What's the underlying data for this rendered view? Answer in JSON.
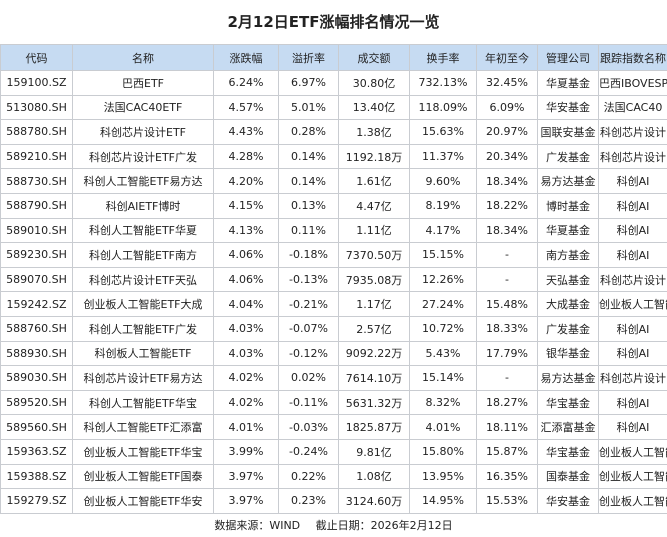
{
  "header": {
    "title": "2月12日ETF涨幅排名情况一览"
  },
  "table": {
    "columns": [
      "代码",
      "名称",
      "涨跌幅",
      "溢折率",
      "成交额",
      "换手率",
      "年初至今",
      "管理公司",
      "跟踪指数名称"
    ],
    "rows": [
      [
        "159100.SZ",
        "巴西ETF",
        "6.24%",
        "6.97%",
        "30.80亿",
        "732.13%",
        "32.45%",
        "华夏基金",
        "巴西IBOVESPA指数"
      ],
      [
        "513080.SH",
        "法国CAC40ETF",
        "4.57%",
        "5.01%",
        "13.40亿",
        "118.09%",
        "6.09%",
        "华安基金",
        "法国CAC40"
      ],
      [
        "588780.SH",
        "科创芯片设计ETF",
        "4.43%",
        "0.28%",
        "1.38亿",
        "15.63%",
        "20.97%",
        "国联安基金",
        "科创芯片设计"
      ],
      [
        "589210.SH",
        "科创芯片设计ETF广发",
        "4.28%",
        "0.14%",
        "1192.18万",
        "11.37%",
        "20.34%",
        "广发基金",
        "科创芯片设计"
      ],
      [
        "588730.SH",
        "科创人工智能ETF易方达",
        "4.20%",
        "0.14%",
        "1.61亿",
        "9.60%",
        "18.34%",
        "易方达基金",
        "科创AI"
      ],
      [
        "588790.SH",
        "科创AIETF博时",
        "4.15%",
        "0.13%",
        "4.47亿",
        "8.19%",
        "18.22%",
        "博时基金",
        "科创AI"
      ],
      [
        "589010.SH",
        "科创人工智能ETF华夏",
        "4.13%",
        "0.11%",
        "1.11亿",
        "4.17%",
        "18.34%",
        "华夏基金",
        "科创AI"
      ],
      [
        "589230.SH",
        "科创人工智能ETF南方",
        "4.06%",
        "-0.18%",
        "7370.50万",
        "15.15%",
        "-",
        "南方基金",
        "科创AI"
      ],
      [
        "589070.SH",
        "科创芯片设计ETF天弘",
        "4.06%",
        "-0.13%",
        "7935.08万",
        "12.26%",
        "-",
        "天弘基金",
        "科创芯片设计"
      ],
      [
        "159242.SZ",
        "创业板人工智能ETF大成",
        "4.04%",
        "-0.21%",
        "1.17亿",
        "27.24%",
        "15.48%",
        "大成基金",
        "创业板人工智能"
      ],
      [
        "588760.SH",
        "科创人工智能ETF广发",
        "4.03%",
        "-0.07%",
        "2.57亿",
        "10.72%",
        "18.33%",
        "广发基金",
        "科创AI"
      ],
      [
        "588930.SH",
        "科创板人工智能ETF",
        "4.03%",
        "-0.12%",
        "9092.22万",
        "5.43%",
        "17.79%",
        "银华基金",
        "科创AI"
      ],
      [
        "589030.SH",
        "科创芯片设计ETF易方达",
        "4.02%",
        "0.02%",
        "7614.10万",
        "15.14%",
        "-",
        "易方达基金",
        "科创芯片设计"
      ],
      [
        "589520.SH",
        "科创人工智能ETF华宝",
        "4.02%",
        "-0.11%",
        "5631.32万",
        "8.32%",
        "18.27%",
        "华宝基金",
        "科创AI"
      ],
      [
        "589560.SH",
        "科创人工智能ETF汇添富",
        "4.01%",
        "-0.03%",
        "1825.87万",
        "4.01%",
        "18.11%",
        "汇添富基金",
        "科创AI"
      ],
      [
        "159363.SZ",
        "创业板人工智能ETF华宝",
        "3.99%",
        "-0.24%",
        "9.81亿",
        "15.80%",
        "15.87%",
        "华宝基金",
        "创业板人工智能"
      ],
      [
        "159388.SZ",
        "创业板人工智能ETF国泰",
        "3.97%",
        "0.22%",
        "1.08亿",
        "13.95%",
        "16.35%",
        "国泰基金",
        "创业板人工智能"
      ],
      [
        "159279.SZ",
        "创业板人工智能ETF华安",
        "3.97%",
        "0.23%",
        "3124.60万",
        "14.95%",
        "15.53%",
        "华安基金",
        "创业板人工智能"
      ]
    ]
  },
  "footer": {
    "source": "数据来源：WIND",
    "date": "截止日期：2026年2月12日"
  }
}
